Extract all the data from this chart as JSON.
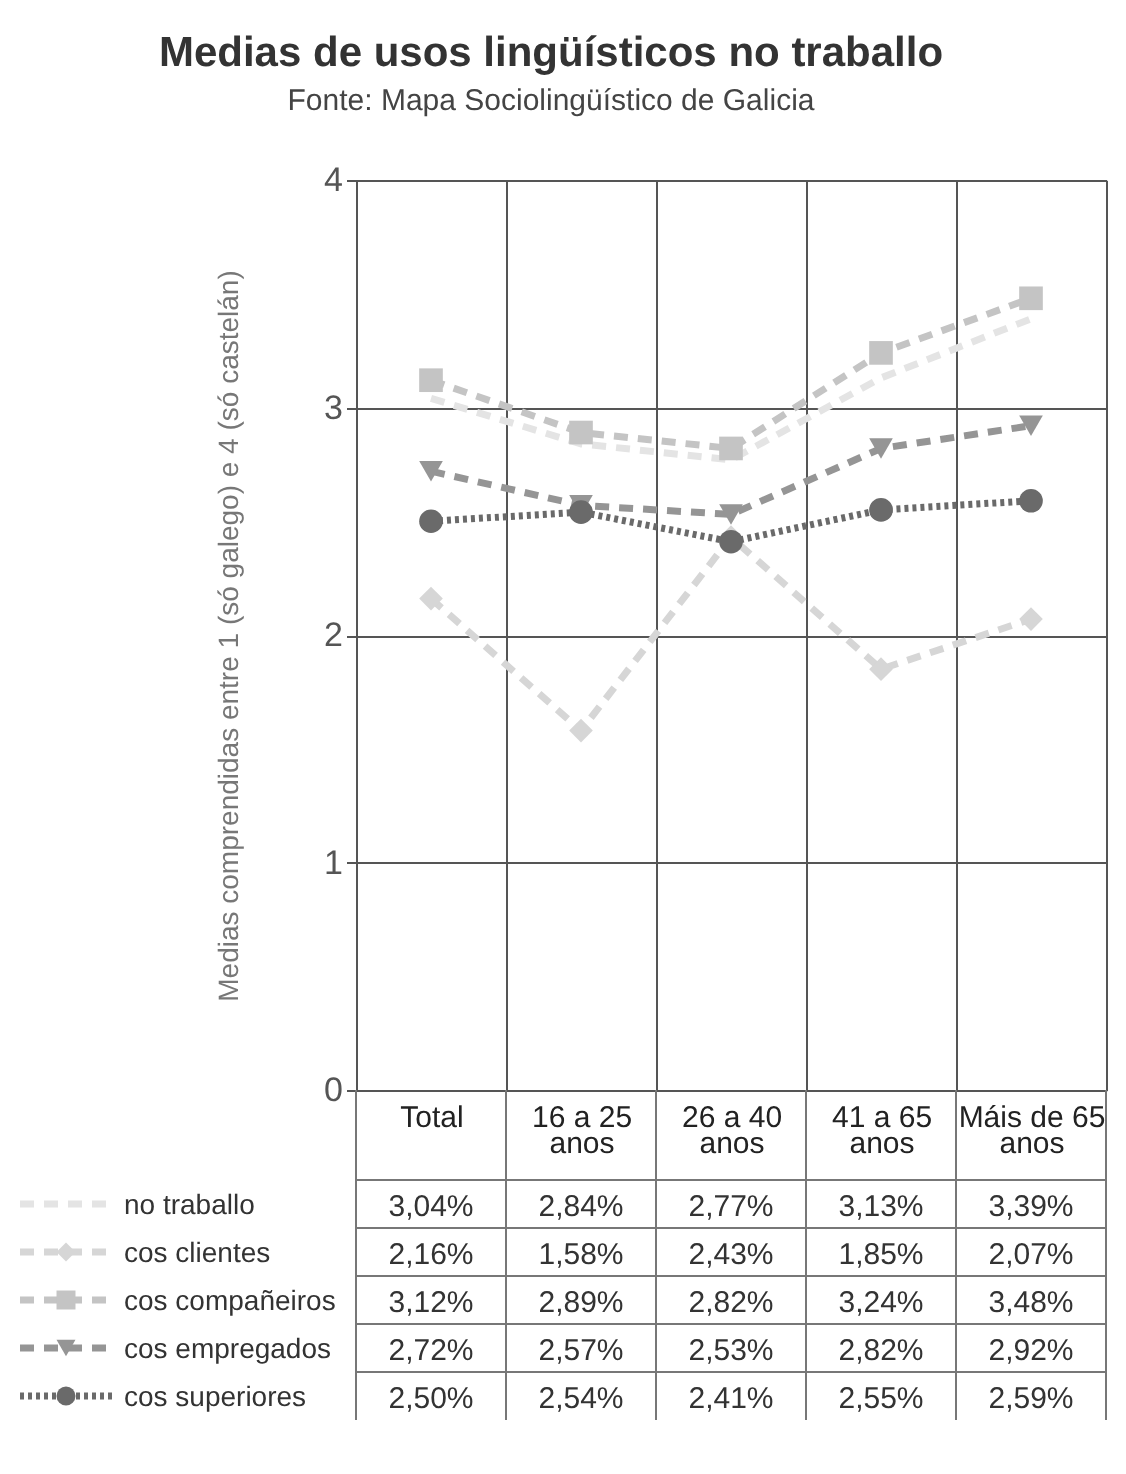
{
  "chart_data": {
    "type": "line",
    "title": "Medias de usos lingüísticos no traballo",
    "subtitle": "Fonte: Mapa Sociolingüístico de Galicia",
    "ylabel": "Medias comprendidas entre 1 (só galego) e 4 (só castelán)",
    "categories": [
      "Total",
      "16 a 25\nanos",
      "26 a 40\nanos",
      "41 a 65\nanos",
      "Máis de 65\nanos"
    ],
    "ylim": [
      0,
      4
    ],
    "yticks": [
      0,
      1,
      2,
      3,
      4
    ],
    "grid": true,
    "legend": "bottom",
    "series": [
      {
        "name": "no traballo",
        "color": "#e4e4e4",
        "marker": "none",
        "line_style": "dashed",
        "values": [
          3.04,
          2.84,
          2.77,
          3.13,
          3.39
        ],
        "value_labels": [
          "3,04%",
          "2,84%",
          "2,77%",
          "3,13%",
          "3,39%"
        ]
      },
      {
        "name": "cos clientes",
        "color": "#d6d6d6",
        "marker": "diamond",
        "line_style": "dashed",
        "values": [
          2.16,
          1.58,
          2.43,
          1.85,
          2.07
        ],
        "value_labels": [
          "2,16%",
          "1,58%",
          "2,43%",
          "1,85%",
          "2,07%"
        ]
      },
      {
        "name": "cos compañeiros",
        "color": "#c4c4c4",
        "marker": "square",
        "line_style": "dashed",
        "values": [
          3.12,
          2.89,
          2.82,
          3.24,
          3.48
        ],
        "value_labels": [
          "3,12%",
          "2,89%",
          "2,82%",
          "3,24%",
          "3,48%"
        ]
      },
      {
        "name": "cos empregados",
        "color": "#959595",
        "marker": "triangle",
        "line_style": "dashed",
        "values": [
          2.72,
          2.57,
          2.53,
          2.82,
          2.92
        ],
        "value_labels": [
          "2,72%",
          "2,57%",
          "2,53%",
          "2,82%",
          "2,92%"
        ]
      },
      {
        "name": "cos superiores",
        "color": "#6a6a6a",
        "marker": "circle",
        "line_style": "dotted",
        "values": [
          2.5,
          2.54,
          2.41,
          2.55,
          2.59
        ],
        "value_labels": [
          "2,50%",
          "2,54%",
          "2,41%",
          "2,55%",
          "2,59%"
        ]
      }
    ]
  }
}
